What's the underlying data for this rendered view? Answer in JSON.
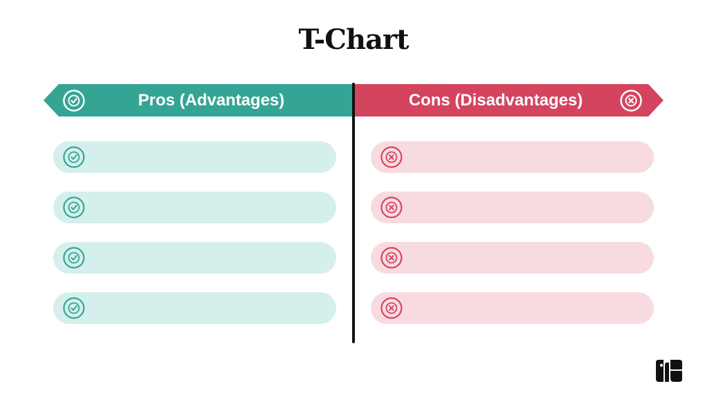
{
  "title": "T-Chart",
  "colors": {
    "pros_accent": "#34a594",
    "pros_row": "#d5f0ec",
    "cons_accent": "#d4445f",
    "cons_row": "#f8dbe0",
    "divider": "#111111"
  },
  "pros": {
    "label": "Pros (Advantages)",
    "icon": "check-circle-icon",
    "rows": [
      "",
      "",
      "",
      ""
    ]
  },
  "cons": {
    "label": "Cons (Disadvantages)",
    "icon": "x-circle-icon",
    "rows": [
      "",
      "",
      "",
      ""
    ]
  },
  "logo": "brand-logo-icon"
}
